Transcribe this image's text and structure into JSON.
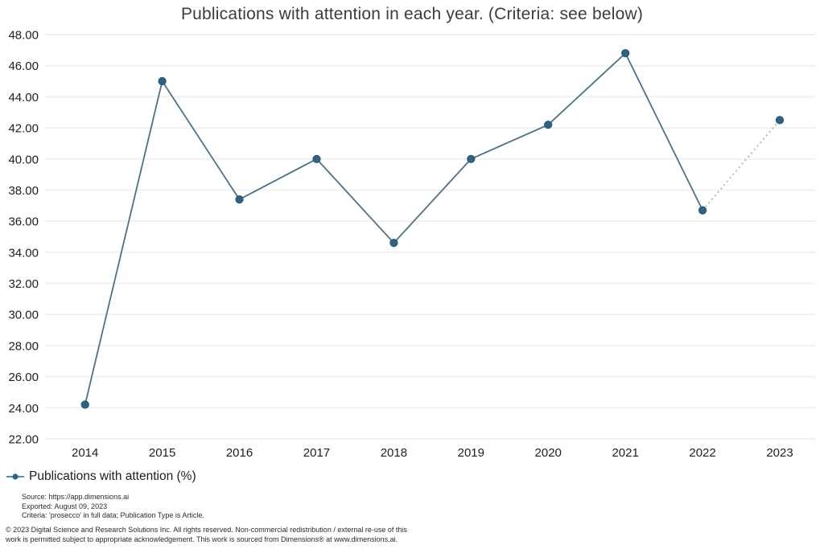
{
  "title": "Publications with attention in each year. (Criteria: see below)",
  "legend": {
    "marker": "line-dot-marker-icon",
    "label": "Publications with attention (%)"
  },
  "footer": {
    "source": "Source: https://app.dimensions.ai",
    "exported": "Exported: August 09, 2023",
    "criteria": "Criteria: 'prosecco' in full data; Publication Type is Article.",
    "copyright": "© 2023 Digital Science and Research Solutions Inc. All rights reserved. Non-commercial redistribution / external re-use of this work is permitted subject to appropriate acknowledgement. This work is sourced from Dimensions® at www.dimensions.ai."
  },
  "colors": {
    "line": "#4d7187",
    "point_fill": "#2e6384",
    "point_stroke": "#24536e",
    "dotted_segment": "#9aa5ad",
    "gridline": "#f1f1f1",
    "axis_text": "#1f1f1f",
    "title_text": "#3c3c3c"
  },
  "chart_data": {
    "type": "line",
    "title": "Publications with attention in each year. (Criteria: see below)",
    "categories": [
      "2014",
      "2015",
      "2016",
      "2017",
      "2018",
      "2019",
      "2020",
      "2021",
      "2022",
      "2023"
    ],
    "series": [
      {
        "name": "Publications with attention (%)",
        "values": [
          24.2,
          45.0,
          37.4,
          40.0,
          34.6,
          40.0,
          42.2,
          46.8,
          36.7,
          42.5
        ]
      }
    ],
    "xlabel": "",
    "ylabel": "",
    "ylim": [
      22,
      48
    ],
    "ytick_step": 2,
    "ytick_format_decimals": 2,
    "grid": "horizontal-only",
    "legend_position": "bottom-left",
    "notes": "segment between 2022 and 2023 drawn dotted (partial year)"
  }
}
